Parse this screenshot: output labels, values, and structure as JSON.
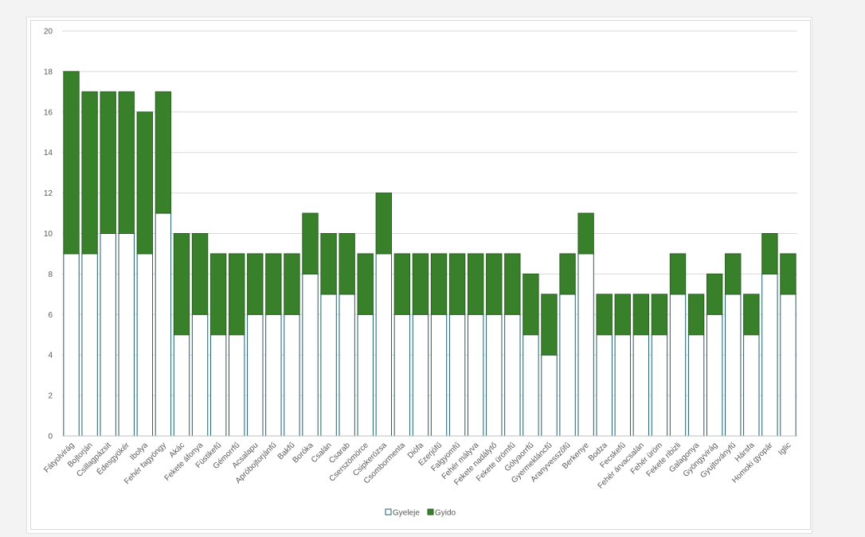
{
  "chart_data": {
    "type": "bar",
    "stacked": true,
    "title": "",
    "xlabel": "",
    "ylabel": "",
    "ylim": [
      0,
      20
    ],
    "yticks": [
      0,
      2,
      4,
      6,
      8,
      10,
      12,
      14,
      16,
      18,
      20
    ],
    "grid": true,
    "legend": "bottom",
    "categories": [
      "Fátyolvirág",
      "Bojtorján",
      "Csillagpázsit",
      "Édesgyökér",
      "Ibolya",
      "Fehér fagyöngy",
      "Akác",
      "Fekete áfonya",
      "Füstikefű",
      "Gémorrfű",
      "Acsalapu",
      "Apróbojtorjánfű",
      "Bakfű",
      "Boróka",
      "Csalán",
      "Csarab",
      "Cserszömörce",
      "Csipkerózsa",
      "Csombormenta",
      "Diófa",
      "Ezerjófű",
      "Falgyomfű",
      "Fehér mályva",
      "Fekete nadálytő",
      "Fekete ürömfű",
      "Gólyaorrfű",
      "Gyermekláncfű",
      "Aranyvesszőfű",
      "Berkenye",
      "Bodza",
      "Fecskefű",
      "Fehér árvacsalán",
      "Fehér üröm",
      "Fekete ribizli",
      "Galagonya",
      "Gyöngyvirág",
      "Gyujtoványfű",
      "Hársfa",
      "Homoki gyopár",
      "Iglic"
    ],
    "series": [
      {
        "name": "Gyeleje",
        "color": "#ffffff",
        "values": [
          9,
          9,
          10,
          10,
          9,
          11,
          5,
          6,
          5,
          5,
          6,
          6,
          6,
          8,
          7,
          7,
          6,
          9,
          6,
          6,
          6,
          6,
          6,
          6,
          6,
          5,
          4,
          7,
          9,
          5,
          5,
          5,
          5,
          7,
          5,
          6,
          7,
          5,
          8,
          7
        ]
      },
      {
        "name": "Gyido",
        "color": "#38802a",
        "values": [
          9,
          8,
          7,
          7,
          7,
          6,
          5,
          4,
          4,
          4,
          3,
          3,
          3,
          3,
          3,
          3,
          3,
          3,
          3,
          3,
          3,
          3,
          3,
          3,
          3,
          3,
          3,
          2,
          2,
          2,
          2,
          2,
          2,
          2,
          2,
          2,
          2,
          2,
          2,
          2
        ]
      }
    ]
  }
}
